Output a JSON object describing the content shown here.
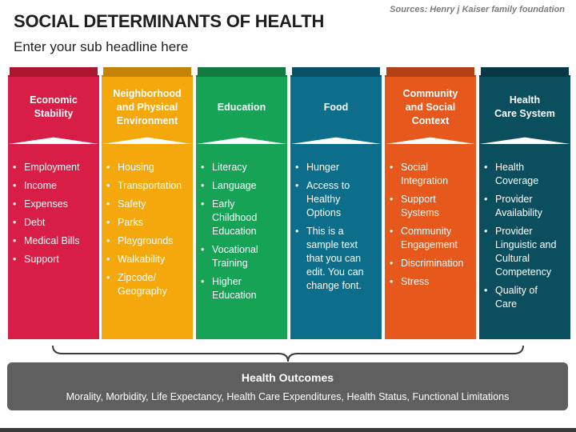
{
  "title": "SOCIAL DETERMINANTS OF HEALTH",
  "subtitle": "Enter your sub headline here",
  "source": "Sources: Henry j Kaiser family foundation",
  "columns": [
    {
      "heading": "Economic\nStability",
      "color": "#d81e46",
      "shade": "#a8162f",
      "items": [
        "Employment",
        "Income",
        "Expenses",
        "Debt",
        "Medical Bills",
        "Support"
      ]
    },
    {
      "heading": "Neighborhood\nand Physical\nEnvironment",
      "color": "#f5a80b",
      "shade": "#c4830a",
      "items": [
        "Housing",
        "Transportation",
        "Safety",
        "Parks",
        "Playgrounds",
        "Walkability",
        "Zipcode/\nGeography"
      ]
    },
    {
      "heading": "Education",
      "color": "#17a356",
      "shade": "#127a40",
      "items": [
        "Literacy",
        "Language",
        "Early\nChildhood\nEducation",
        "Vocational\nTraining",
        "Higher\nEducation"
      ]
    },
    {
      "heading": "Food",
      "color": "#0d6e8c",
      "shade": "#0a5168",
      "items": [
        "Hunger",
        "Access to\nHealthy\nOptions",
        "This is a\nsample text\nthat you can\nedit. You can\nchange font."
      ]
    },
    {
      "heading": "Community\nand Social\nContext",
      "color": "#e6581c",
      "shade": "#b24215",
      "items": [
        "Social\nIntegration",
        "Support\nSystems",
        "Community\nEngagement",
        "Discrimination",
        "Stress"
      ]
    },
    {
      "heading": "Health\nCare System",
      "color": "#0b4f5e",
      "shade": "#073844",
      "items": [
        "Health\nCoverage",
        "Provider\nAvailability",
        "Provider\nLinguistic and\nCultural\nCompetency",
        "Quality of\nCare"
      ]
    }
  ],
  "outcomes": {
    "title": "Health Outcomes",
    "text": "Morality, Morbidity, Life Expectancy, Health Care Expenditures, Health Status, Functional Limitations"
  }
}
